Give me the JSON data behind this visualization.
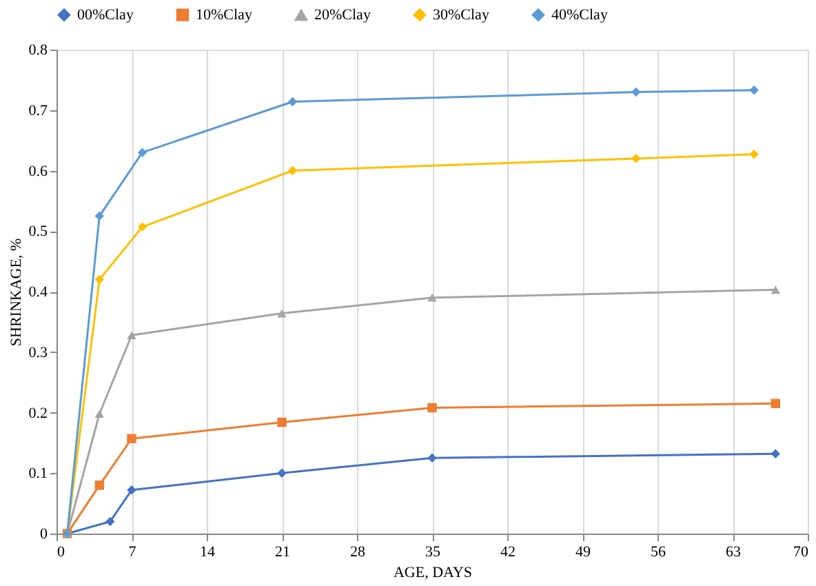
{
  "chart_data": {
    "type": "line",
    "xlabel": "AGE, DAYS",
    "ylabel": "SHRINKAGE, %",
    "xlim": [
      0,
      70
    ],
    "xticks": [
      0,
      7,
      14,
      21,
      28,
      35,
      42,
      49,
      56,
      63,
      70
    ],
    "ylim": [
      0,
      0.8
    ],
    "yticks": [
      0,
      0.1,
      0.2,
      0.3,
      0.4,
      0.5,
      0.6,
      0.7,
      0.8
    ],
    "grid": "x",
    "legend": "top",
    "series": [
      {
        "name": "00%Clay",
        "color": "#4472c4",
        "marker": "diamond",
        "x": [
          1,
          5,
          7,
          21,
          35,
          67
        ],
        "values": [
          0,
          0.02,
          0.072,
          0.1,
          0.125,
          0.132
        ]
      },
      {
        "name": "10%Clay",
        "color": "#ed7d31",
        "marker": "square",
        "x": [
          1,
          4,
          7,
          21,
          35,
          67
        ],
        "values": [
          0,
          0.08,
          0.157,
          0.184,
          0.208,
          0.215
        ]
      },
      {
        "name": "20%Clay",
        "color": "#a5a5a5",
        "marker": "triangle",
        "x": [
          1,
          4,
          7,
          21,
          35,
          67
        ],
        "values": [
          0,
          0.198,
          0.328,
          0.364,
          0.39,
          0.403
        ]
      },
      {
        "name": "30%Clay",
        "color": "#ffc000",
        "marker": "diamond",
        "x": [
          1,
          4,
          8,
          22,
          54,
          65
        ],
        "values": [
          0,
          0.42,
          0.507,
          0.6,
          0.62,
          0.627
        ]
      },
      {
        "name": "40%Clay",
        "color": "#5b9bd5",
        "marker": "diamond",
        "x": [
          1,
          4,
          8,
          22,
          54,
          65
        ],
        "values": [
          0,
          0.525,
          0.63,
          0.714,
          0.73,
          0.733
        ]
      }
    ]
  }
}
